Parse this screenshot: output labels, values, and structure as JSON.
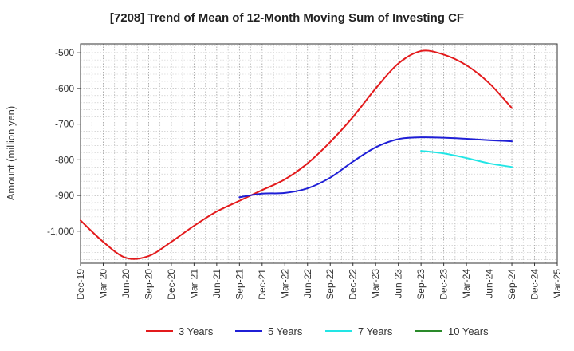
{
  "chart_data": {
    "type": "line",
    "title": "[7208]  Trend of Mean of 12-Month Moving Sum of Investing CF",
    "xlabel": "",
    "ylabel": "Amount (million yen)",
    "ylim": [
      -1090,
      -475
    ],
    "yticks": [
      -500,
      -600,
      -700,
      -800,
      -900,
      -1000
    ],
    "ytick_labels": [
      "-500",
      "-600",
      "-700",
      "-800",
      "-900",
      "-1,000"
    ],
    "x_categories": [
      "Dec-19",
      "Mar-20",
      "Jun-20",
      "Sep-20",
      "Dec-20",
      "Mar-21",
      "Jun-21",
      "Sep-21",
      "Dec-21",
      "Mar-22",
      "Jun-22",
      "Sep-22",
      "Dec-22",
      "Mar-23",
      "Jun-23",
      "Sep-23",
      "Dec-23",
      "Mar-24",
      "Jun-24",
      "Sep-24",
      "Dec-24",
      "Mar-25"
    ],
    "grid": true,
    "legend_position": "bottom",
    "series": [
      {
        "name": "3 Years",
        "color": "#e31a1c",
        "points": [
          [
            0,
            -970
          ],
          [
            1,
            -1030
          ],
          [
            2,
            -1075
          ],
          [
            3,
            -1070
          ],
          [
            4,
            -1030
          ],
          [
            5,
            -985
          ],
          [
            6,
            -945
          ],
          [
            7,
            -915
          ],
          [
            8,
            -885
          ],
          [
            9,
            -855
          ],
          [
            10,
            -810
          ],
          [
            11,
            -750
          ],
          [
            12,
            -680
          ],
          [
            13,
            -600
          ],
          [
            14,
            -530
          ],
          [
            15,
            -495
          ],
          [
            16,
            -505
          ],
          [
            17,
            -535
          ],
          [
            18,
            -585
          ],
          [
            19,
            -655
          ]
        ]
      },
      {
        "name": "5 Years",
        "color": "#1f1fd6",
        "points": [
          [
            7,
            -905
          ],
          [
            8,
            -895
          ],
          [
            9,
            -893
          ],
          [
            10,
            -880
          ],
          [
            11,
            -850
          ],
          [
            12,
            -805
          ],
          [
            13,
            -765
          ],
          [
            14,
            -742
          ],
          [
            15,
            -737
          ],
          [
            16,
            -738
          ],
          [
            17,
            -741
          ],
          [
            18,
            -745
          ],
          [
            19,
            -748
          ]
        ]
      },
      {
        "name": "7 Years",
        "color": "#22e5e5",
        "points": [
          [
            15,
            -775
          ],
          [
            16,
            -782
          ],
          [
            17,
            -795
          ],
          [
            18,
            -810
          ],
          [
            19,
            -820
          ]
        ]
      },
      {
        "name": "10 Years",
        "color": "#2a8a2a",
        "points": []
      }
    ]
  }
}
